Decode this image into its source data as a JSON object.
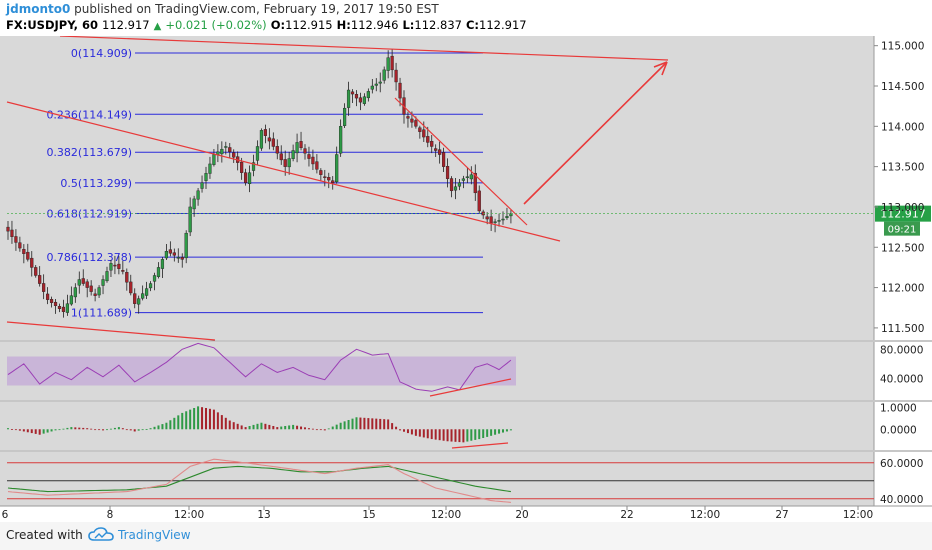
{
  "header": {
    "author": "jdmonto0",
    "published_text": "published on TradingView.com, February 19, 2017 19:50 EST",
    "symbol": "FX:USDJPY, 60",
    "last": "112.917",
    "up_arrow": "▲",
    "change": "+0.021 (+0.02%)",
    "o_label": "O:",
    "o_value": "112.915",
    "h_label": "H:",
    "h_value": "112.946",
    "l_label": "L:",
    "l_value": "112.837",
    "c_label": "C:",
    "c_value": "112.917"
  },
  "footer": {
    "created_with": "Created with",
    "brand": "TradingView",
    "logo_icon": "tradingview-cloud-icon"
  },
  "colors": {
    "background": "#d9d9d9",
    "candle_up": "#2e9a46",
    "candle_down": "#a6232b",
    "fib_line": "#2a2adb",
    "trend_line": "#e83a3a",
    "rsi_line": "#9b3fb5",
    "rsi_band": "#c9b5d8",
    "price_badge": "#26a046",
    "dmi_green": "#2e8a2e",
    "dmi_pink": "#e08a8a",
    "dmi_dark": "#552222"
  },
  "chart_data": [
    {
      "type": "candlestick",
      "symbol": "FX:USDJPY",
      "timeframe": "60",
      "ylim": [
        111.35,
        115.12
      ],
      "y_ticks": [
        "115.000",
        "114.500",
        "114.000",
        "113.500",
        "113.000",
        "112.500",
        "112.000",
        "111.500"
      ],
      "x_ticks": [
        "8",
        "12:00",
        "13",
        "15",
        "12:00",
        "20",
        "22",
        "12:00",
        "27",
        "12:00"
      ],
      "x_tick_partial": "6",
      "price_badge": {
        "value": "112.917",
        "countdown": "09:21"
      },
      "fib_levels": [
        {
          "label": "0(114.909)",
          "ratio": 0,
          "price": 114.909
        },
        {
          "label": "0.236(114.149)",
          "ratio": 0.236,
          "price": 114.149
        },
        {
          "label": "0.382(113.679)",
          "ratio": 0.382,
          "price": 113.679
        },
        {
          "label": "0.5(113.299)",
          "ratio": 0.5,
          "price": 113.299
        },
        {
          "label": "0.618(112.919)",
          "ratio": 0.618,
          "price": 112.919
        },
        {
          "label": "0.786(112.378)",
          "ratio": 0.786,
          "price": 112.378
        },
        {
          "label": "1(111.689)",
          "ratio": 1,
          "price": 111.689
        }
      ],
      "anchors": [
        {
          "bar": 0,
          "price": 112.7
        },
        {
          "bar": 5,
          "price": 112.35
        },
        {
          "bar": 10,
          "price": 111.85
        },
        {
          "bar": 14,
          "price": 111.7
        },
        {
          "bar": 18,
          "price": 112.1
        },
        {
          "bar": 22,
          "price": 111.9
        },
        {
          "bar": 26,
          "price": 112.3
        },
        {
          "bar": 29,
          "price": 112.2
        },
        {
          "bar": 32,
          "price": 111.8
        },
        {
          "bar": 36,
          "price": 112.05
        },
        {
          "bar": 40,
          "price": 112.45
        },
        {
          "bar": 44,
          "price": 112.35
        },
        {
          "bar": 46,
          "price": 113.0
        },
        {
          "bar": 49,
          "price": 113.3
        },
        {
          "bar": 52,
          "price": 113.65
        },
        {
          "bar": 55,
          "price": 113.75
        },
        {
          "bar": 58,
          "price": 113.55
        },
        {
          "bar": 60,
          "price": 113.3
        },
        {
          "bar": 62,
          "price": 113.55
        },
        {
          "bar": 64,
          "price": 113.95
        },
        {
          "bar": 67,
          "price": 113.75
        },
        {
          "bar": 70,
          "price": 113.5
        },
        {
          "bar": 73,
          "price": 113.8
        },
        {
          "bar": 76,
          "price": 113.6
        },
        {
          "bar": 79,
          "price": 113.4
        },
        {
          "bar": 82,
          "price": 113.3
        },
        {
          "bar": 84,
          "price": 114.0
        },
        {
          "bar": 86,
          "price": 114.45
        },
        {
          "bar": 89,
          "price": 114.3
        },
        {
          "bar": 92,
          "price": 114.5
        },
        {
          "bar": 94,
          "price": 114.55
        },
        {
          "bar": 96,
          "price": 114.85
        },
        {
          "bar": 98,
          "price": 114.55
        },
        {
          "bar": 100,
          "price": 114.15
        },
        {
          "bar": 103,
          "price": 114.0
        },
        {
          "bar": 106,
          "price": 113.8
        },
        {
          "bar": 109,
          "price": 113.65
        },
        {
          "bar": 112,
          "price": 113.2
        },
        {
          "bar": 115,
          "price": 113.35
        },
        {
          "bar": 117,
          "price": 113.4
        },
        {
          "bar": 119,
          "price": 112.95
        },
        {
          "bar": 122,
          "price": 112.8
        },
        {
          "bar": 125,
          "price": 112.85
        },
        {
          "bar": 127,
          "price": 112.917
        }
      ]
    },
    {
      "type": "line",
      "indicator": "RSI",
      "y_ticks": [
        "80.0000",
        "40.0000"
      ],
      "ylim": [
        10,
        90
      ],
      "band": [
        30,
        70
      ],
      "anchors": [
        {
          "bar": 0,
          "value": 45
        },
        {
          "bar": 4,
          "value": 60
        },
        {
          "bar": 8,
          "value": 32
        },
        {
          "bar": 12,
          "value": 48
        },
        {
          "bar": 16,
          "value": 38
        },
        {
          "bar": 20,
          "value": 55
        },
        {
          "bar": 24,
          "value": 42
        },
        {
          "bar": 28,
          "value": 58
        },
        {
          "bar": 32,
          "value": 35
        },
        {
          "bar": 36,
          "value": 48
        },
        {
          "bar": 40,
          "value": 62
        },
        {
          "bar": 44,
          "value": 80
        },
        {
          "bar": 48,
          "value": 88
        },
        {
          "bar": 52,
          "value": 82
        },
        {
          "bar": 56,
          "value": 62
        },
        {
          "bar": 60,
          "value": 42
        },
        {
          "bar": 64,
          "value": 60
        },
        {
          "bar": 68,
          "value": 48
        },
        {
          "bar": 72,
          "value": 55
        },
        {
          "bar": 76,
          "value": 44
        },
        {
          "bar": 80,
          "value": 38
        },
        {
          "bar": 84,
          "value": 65
        },
        {
          "bar": 88,
          "value": 80
        },
        {
          "bar": 92,
          "value": 72
        },
        {
          "bar": 96,
          "value": 74
        },
        {
          "bar": 99,
          "value": 35
        },
        {
          "bar": 103,
          "value": 25
        },
        {
          "bar": 107,
          "value": 22
        },
        {
          "bar": 111,
          "value": 28
        },
        {
          "bar": 114,
          "value": 24
        },
        {
          "bar": 118,
          "value": 55
        },
        {
          "bar": 121,
          "value": 60
        },
        {
          "bar": 124,
          "value": 52
        },
        {
          "bar": 127,
          "value": 65
        }
      ]
    },
    {
      "type": "bar",
      "indicator": "MACD histogram",
      "y_ticks": [
        "1.0000",
        "0.0000"
      ],
      "ylim": [
        -0.95,
        1.25
      ],
      "anchors": [
        {
          "bar": 0,
          "value": 0.05
        },
        {
          "bar": 4,
          "value": -0.1
        },
        {
          "bar": 8,
          "value": -0.25
        },
        {
          "bar": 12,
          "value": -0.05
        },
        {
          "bar": 16,
          "value": 0.1
        },
        {
          "bar": 20,
          "value": 0.05
        },
        {
          "bar": 24,
          "value": -0.05
        },
        {
          "bar": 28,
          "value": 0.1
        },
        {
          "bar": 32,
          "value": -0.1
        },
        {
          "bar": 36,
          "value": 0.05
        },
        {
          "bar": 40,
          "value": 0.3
        },
        {
          "bar": 44,
          "value": 0.75
        },
        {
          "bar": 48,
          "value": 1.05
        },
        {
          "bar": 52,
          "value": 0.9
        },
        {
          "bar": 56,
          "value": 0.4
        },
        {
          "bar": 60,
          "value": 0.1
        },
        {
          "bar": 64,
          "value": 0.3
        },
        {
          "bar": 68,
          "value": 0.1
        },
        {
          "bar": 72,
          "value": 0.2
        },
        {
          "bar": 76,
          "value": 0.05
        },
        {
          "bar": 80,
          "value": -0.05
        },
        {
          "bar": 84,
          "value": 0.3
        },
        {
          "bar": 88,
          "value": 0.55
        },
        {
          "bar": 92,
          "value": 0.5
        },
        {
          "bar": 96,
          "value": 0.45
        },
        {
          "bar": 99,
          "value": -0.05
        },
        {
          "bar": 103,
          "value": -0.3
        },
        {
          "bar": 107,
          "value": -0.45
        },
        {
          "bar": 111,
          "value": -0.55
        },
        {
          "bar": 115,
          "value": -0.6
        },
        {
          "bar": 119,
          "value": -0.45
        },
        {
          "bar": 123,
          "value": -0.25
        },
        {
          "bar": 127,
          "value": -0.05
        }
      ]
    },
    {
      "type": "line",
      "indicator": "DMI",
      "y_ticks": [
        "60.0000",
        "40.0000"
      ],
      "ylim": [
        36,
        66
      ],
      "levels": [
        60,
        50,
        40
      ],
      "series": [
        {
          "color": "#2e8a2e",
          "anchors": [
            {
              "bar": 0,
              "value": 46
            },
            {
              "bar": 10,
              "value": 44
            },
            {
              "bar": 20,
              "value": 44.5
            },
            {
              "bar": 30,
              "value": 45
            },
            {
              "bar": 40,
              "value": 47
            },
            {
              "bar": 46,
              "value": 52
            },
            {
              "bar": 52,
              "value": 57
            },
            {
              "bar": 58,
              "value": 58
            },
            {
              "bar": 66,
              "value": 57
            },
            {
              "bar": 74,
              "value": 55
            },
            {
              "bar": 82,
              "value": 55
            },
            {
              "bar": 90,
              "value": 57
            },
            {
              "bar": 96,
              "value": 58
            },
            {
              "bar": 102,
              "value": 55
            },
            {
              "bar": 110,
              "value": 51
            },
            {
              "bar": 118,
              "value": 47
            },
            {
              "bar": 127,
              "value": 44
            }
          ]
        },
        {
          "color": "#e08a8a",
          "anchors": [
            {
              "bar": 0,
              "value": 44
            },
            {
              "bar": 10,
              "value": 42
            },
            {
              "bar": 20,
              "value": 43
            },
            {
              "bar": 30,
              "value": 44
            },
            {
              "bar": 40,
              "value": 48
            },
            {
              "bar": 46,
              "value": 58
            },
            {
              "bar": 52,
              "value": 62
            },
            {
              "bar": 60,
              "value": 60
            },
            {
              "bar": 70,
              "value": 57
            },
            {
              "bar": 80,
              "value": 54
            },
            {
              "bar": 88,
              "value": 57
            },
            {
              "bar": 96,
              "value": 59
            },
            {
              "bar": 100,
              "value": 54
            },
            {
              "bar": 108,
              "value": 46
            },
            {
              "bar": 116,
              "value": 42
            },
            {
              "bar": 122,
              "value": 39
            },
            {
              "bar": 127,
              "value": 38
            }
          ]
        }
      ]
    }
  ]
}
